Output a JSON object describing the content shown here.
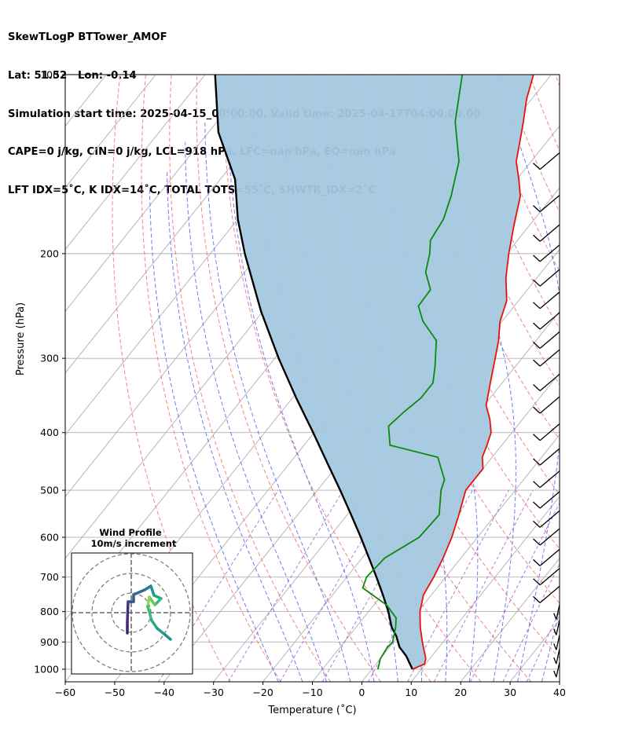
{
  "header": {
    "line1": "SkewTLogP BTTower_AMOF",
    "line2": "Lat: 51.52   Lon: -0.14",
    "line3": "Simulation start time: 2025-04-15_00:00:00, Valid time: 2025-04-17T04:00:00.00",
    "line4": "CAPE=0 j/kg, CIN=0 j/kg, LCL=918 hPa, LFC=nan hPa, EQ=nan hPa",
    "line5": "LFT IDX=5˚C, K IDX=14˚C, TOTAL TOTS=55˚C, SHWTR_IDX=2˚C"
  },
  "chart_data": {
    "type": "line",
    "subtype": "skew-t log-p",
    "xlabel": "Temperature (˚C)",
    "ylabel": "Pressure (hPa)",
    "xlim": [
      -60,
      40
    ],
    "ylim": [
      1050,
      100
    ],
    "yscale": "log",
    "grid": true,
    "xticks": [
      "−60",
      "−50",
      "−40",
      "−30",
      "−20",
      "−10",
      "0",
      "10",
      "20",
      "30",
      "40"
    ],
    "yticks": [
      "100",
      "200",
      "300",
      "400",
      "500",
      "600",
      "700",
      "800",
      "900",
      "1000"
    ],
    "colors": {
      "temperature": "#e8120c",
      "dewpoint": "#0b8a0b",
      "parcel": "#000000",
      "cin_shading": "#a4c8e0",
      "dry_adiabats": "#f07070",
      "moist_adiabats": "#4a5cf0",
      "mixing_ratio": "#9b3bd6",
      "isotherms": "#b0b0b0"
    },
    "series": [
      {
        "key": "temperature",
        "points": [
          [
            8.2,
            1000
          ],
          [
            9.8,
            980
          ],
          [
            9.2,
            960
          ],
          [
            5.8,
            900
          ],
          [
            3.0,
            850
          ],
          [
            0.4,
            800
          ],
          [
            -1.6,
            750
          ],
          [
            -2.4,
            700
          ],
          [
            -3.6,
            650
          ],
          [
            -5.2,
            600
          ],
          [
            -7.4,
            550
          ],
          [
            -10.0,
            500
          ],
          [
            -10.0,
            460
          ],
          [
            -12.0,
            440
          ],
          [
            -13.0,
            420
          ],
          [
            -14.2,
            400
          ],
          [
            -16.6,
            380
          ],
          [
            -19.6,
            360
          ],
          [
            -22.4,
            330
          ],
          [
            -25.4,
            300
          ],
          [
            -27.6,
            280
          ],
          [
            -30.4,
            260
          ],
          [
            -32.4,
            240
          ],
          [
            -36.2,
            220
          ],
          [
            -39.6,
            200
          ],
          [
            -43.0,
            180
          ],
          [
            -46.6,
            160
          ],
          [
            -49.6,
            150
          ],
          [
            -53.0,
            140
          ],
          [
            -55.4,
            130
          ],
          [
            -58.0,
            120
          ],
          [
            -61.0,
            110
          ],
          [
            -63.6,
            100
          ]
        ]
      },
      {
        "key": "dewpoint",
        "points": [
          [
            1.2,
            1000
          ],
          [
            0.0,
            960
          ],
          [
            -0.4,
            920
          ],
          [
            -0.2,
            900
          ],
          [
            -2.0,
            850
          ],
          [
            -3.4,
            820
          ],
          [
            -7.4,
            780
          ],
          [
            -15.0,
            730
          ],
          [
            -16.0,
            700
          ],
          [
            -15.4,
            650
          ],
          [
            -11.8,
            600
          ],
          [
            -11.4,
            550
          ],
          [
            -15.0,
            500
          ],
          [
            -16.0,
            480
          ],
          [
            -21.0,
            440
          ],
          [
            -32.6,
            420
          ],
          [
            -36.0,
            390
          ],
          [
            -35.2,
            370
          ],
          [
            -34.0,
            350
          ],
          [
            -34.0,
            330
          ],
          [
            -36.2,
            310
          ],
          [
            -40.2,
            280
          ],
          [
            -46.0,
            260
          ],
          [
            -49.4,
            245
          ],
          [
            -49.6,
            230
          ],
          [
            -53.4,
            215
          ],
          [
            -55.6,
            200
          ],
          [
            -57.6,
            190
          ],
          [
            -58.4,
            175
          ],
          [
            -60.6,
            160
          ],
          [
            -64.6,
            140
          ],
          [
            -71.8,
            120
          ],
          [
            -78.0,
            100
          ]
        ]
      },
      {
        "key": "parcel",
        "points": [
          [
            8.2,
            1000
          ],
          [
            4.8,
            950
          ],
          [
            2.0,
            918
          ],
          [
            -0.4,
            880
          ],
          [
            -2.8,
            850
          ],
          [
            -6.0,
            800
          ],
          [
            -9.8,
            750
          ],
          [
            -14.0,
            700
          ],
          [
            -18.6,
            650
          ],
          [
            -23.6,
            600
          ],
          [
            -29.2,
            550
          ],
          [
            -35.4,
            500
          ],
          [
            -42.4,
            450
          ],
          [
            -50.2,
            400
          ],
          [
            -59.2,
            350
          ],
          [
            -69.2,
            300
          ],
          [
            -80.4,
            250
          ],
          [
            -93.0,
            200
          ],
          [
            -100.0,
            175
          ],
          [
            -107.0,
            150
          ],
          [
            -118.0,
            125
          ],
          [
            -128.0,
            100
          ]
        ]
      }
    ],
    "wind_profile": {
      "title": "Wind Profile",
      "subtitle": "10m/s increment"
    }
  }
}
